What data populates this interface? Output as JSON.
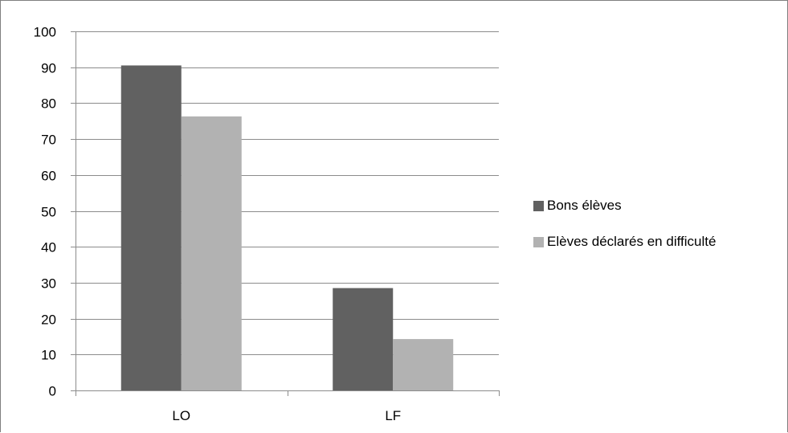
{
  "chart_data": {
    "type": "bar",
    "title": "",
    "xlabel": "",
    "ylabel": "",
    "categories": [
      "LO",
      "LF"
    ],
    "series": [
      {
        "name": "Bons élèves",
        "values": [
          90.5,
          28.5
        ],
        "color": "#616161"
      },
      {
        "name": "Elèves déclarés en difficulté",
        "values": [
          76.3,
          14.3
        ],
        "color": "#b2b2b2"
      }
    ],
    "ylim": [
      0,
      100
    ],
    "yticks": [
      "0",
      "10",
      "20",
      "30",
      "40",
      "50",
      "60",
      "70",
      "80",
      "90",
      "100"
    ],
    "grid": true,
    "legend_position": "right"
  },
  "colors": {
    "gridline": "#8c8c8c",
    "axis": "#8c8c8c",
    "frame": "#7f7f7f"
  }
}
